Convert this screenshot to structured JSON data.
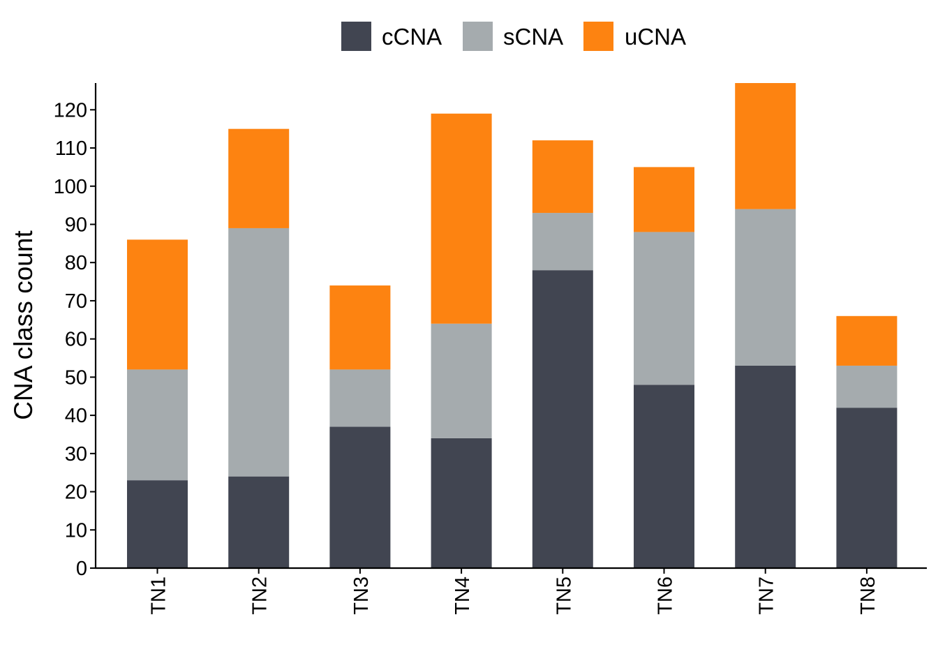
{
  "chart_data": {
    "type": "bar",
    "stacked": true,
    "categories": [
      "TN1",
      "TN2",
      "TN3",
      "TN4",
      "TN5",
      "TN6",
      "TN7",
      "TN8"
    ],
    "series": [
      {
        "name": "cCNA",
        "color": "#414551",
        "values": [
          23,
          24,
          37,
          34,
          78,
          48,
          53,
          42
        ]
      },
      {
        "name": "sCNA",
        "color": "#a5abae",
        "values": [
          29,
          65,
          15,
          30,
          15,
          40,
          41,
          11
        ]
      },
      {
        "name": "uCNA",
        "color": "#fd8311",
        "values": [
          34,
          26,
          22,
          55,
          19,
          17,
          33,
          13
        ]
      }
    ],
    "ylabel": "CNA class count",
    "xlabel": "",
    "ylim": [
      0,
      127
    ],
    "yticks": [
      0,
      10,
      20,
      30,
      40,
      50,
      60,
      70,
      80,
      90,
      100,
      110,
      120
    ],
    "grid": false,
    "legend_position": "top"
  }
}
